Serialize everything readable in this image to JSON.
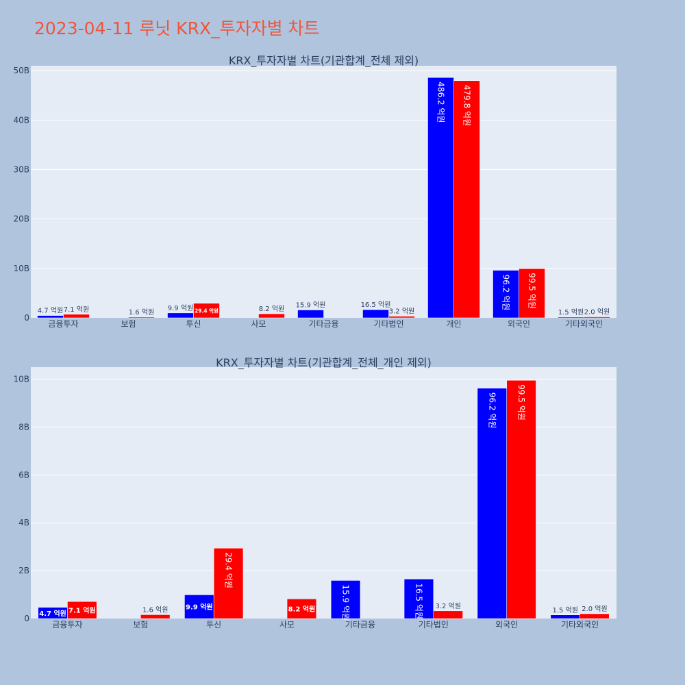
{
  "page_title": "2023-04-11 루닛 KRX_투자자별 차트",
  "colors": {
    "buy": "#0000ff",
    "sell": "#ff0000",
    "plot_bg": "#e5ecf6",
    "paper_bg": "#b0c4de",
    "title": "#ef553b"
  },
  "chart_data": [
    {
      "type": "bar",
      "title": "KRX_투자자별 차트(기관합계_전체 제외)",
      "categories": [
        "금융투자",
        "보험",
        "투신",
        "사모",
        "기타금융",
        "기타법인",
        "개인",
        "외국인",
        "기타외국인"
      ],
      "series": [
        {
          "color": "#0000ff",
          "values": [
            0.47,
            null,
            0.99,
            null,
            1.59,
            1.65,
            48.62,
            9.62,
            0.15
          ],
          "labels": [
            "4.7 억원",
            "",
            "9.9 억원",
            "",
            "15.9 억원",
            "16.5 억원",
            "486.2 억원",
            "96.2 억원",
            "1.5 억원"
          ]
        },
        {
          "color": "#ff0000",
          "values": [
            0.71,
            0.16,
            2.94,
            0.82,
            null,
            0.32,
            47.98,
            9.95,
            0.2
          ],
          "labels": [
            "7.1 억원",
            "1.6 억원",
            "29.4 억원",
            "8.2 억원",
            "",
            "3.2 억원",
            "479.8 억원",
            "99.5 억원",
            "2.0 억원"
          ]
        }
      ],
      "ylim": [
        0,
        51
      ],
      "yticks": [
        0,
        10,
        20,
        30,
        40,
        50
      ],
      "ytick_labels": [
        "0",
        "10B",
        "20B",
        "30B",
        "40B",
        "50B"
      ],
      "grid": true
    },
    {
      "type": "bar",
      "title": "KRX_투자자별 차트(기관합계_전체_개인 제외)",
      "categories": [
        "금융투자",
        "보험",
        "투신",
        "사모",
        "기타금융",
        "기타법인",
        "외국인",
        "기타외국인"
      ],
      "series": [
        {
          "color": "#0000ff",
          "values": [
            0.47,
            null,
            0.99,
            null,
            1.59,
            1.65,
            9.62,
            0.15
          ],
          "labels": [
            "4.7 억원",
            "",
            "9.9 억원",
            "",
            "15.9 억원",
            "16.5 억원",
            "96.2 억원",
            "1.5 억원"
          ]
        },
        {
          "color": "#ff0000",
          "values": [
            0.71,
            0.16,
            2.94,
            0.82,
            null,
            0.32,
            9.95,
            0.2
          ],
          "labels": [
            "7.1 억원",
            "1.6 억원",
            "29.4 억원",
            "8.2 억원",
            "",
            "3.2 억원",
            "99.5 억원",
            "2.0 억원"
          ]
        }
      ],
      "ylim": [
        0,
        10.5
      ],
      "yticks": [
        0,
        2,
        4,
        6,
        8,
        10
      ],
      "ytick_labels": [
        "0",
        "2B",
        "4B",
        "6B",
        "8B",
        "10B"
      ],
      "grid": true
    }
  ]
}
